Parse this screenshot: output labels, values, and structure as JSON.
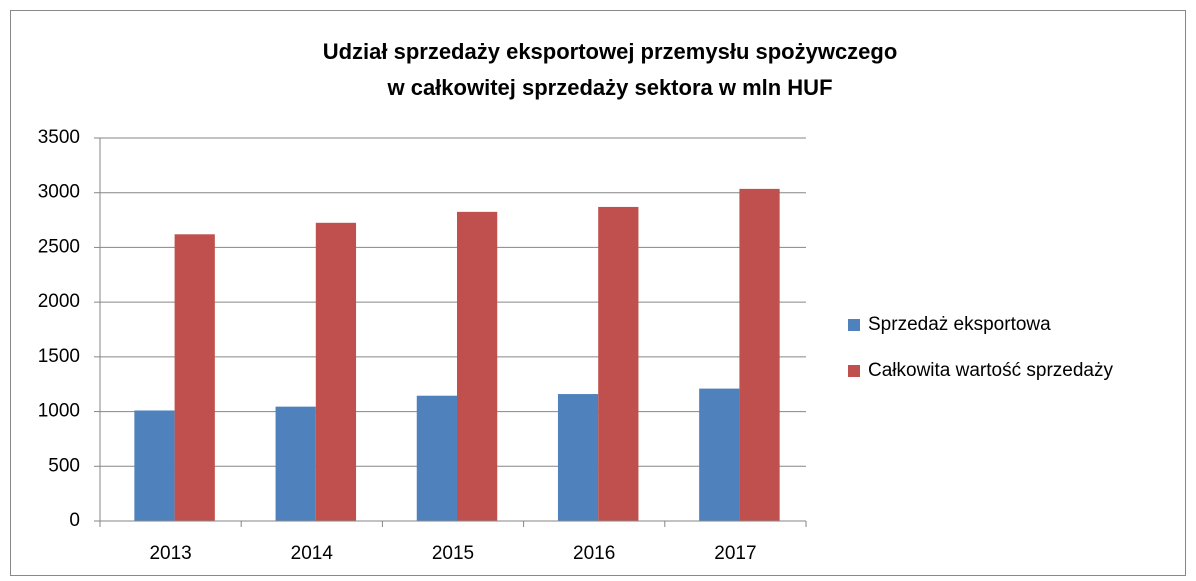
{
  "chart_data": {
    "type": "bar",
    "title": [
      "Udział sprzedaży eksportowej przemysłu spożywczego",
      "w całkowitej sprzedaży sektora w mln HUF"
    ],
    "categories": [
      "2013",
      "2014",
      "2015",
      "2016",
      "2017"
    ],
    "series": [
      {
        "name": "Sprzedaż eksportowa",
        "color": "#4f81bd",
        "values": [
          1010,
          1045,
          1145,
          1160,
          1210
        ]
      },
      {
        "name": "Całkowita wartość sprzedaży",
        "color": "#c0504d",
        "values": [
          2620,
          2725,
          2825,
          2870,
          3035
        ]
      }
    ],
    "ylim": [
      0,
      3500
    ],
    "yticks": [
      0,
      500,
      1000,
      1500,
      2000,
      2500,
      3000,
      3500
    ],
    "grid": true,
    "legend": "right"
  }
}
